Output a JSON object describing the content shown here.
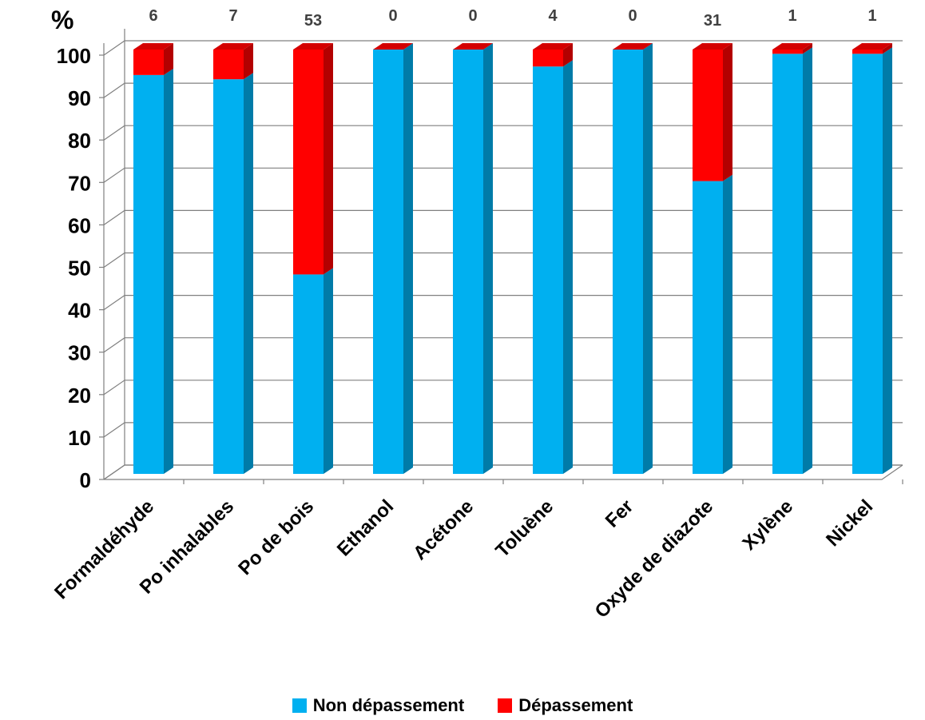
{
  "chart_data": {
    "type": "bar",
    "stacked": true,
    "style": "3d",
    "ylabel": "%",
    "ylim": [
      0,
      100
    ],
    "yticks": [
      0,
      10,
      20,
      30,
      40,
      50,
      60,
      70,
      80,
      90,
      100
    ],
    "grid": true,
    "legend_position": "bottom",
    "categories": [
      "Formaldéhyde",
      "Po inhalables",
      "Po de bois",
      "Ethanol",
      "Acétone",
      "Toluène",
      "Fer",
      "Oxyde de diazote",
      "Xylène",
      "Nickel"
    ],
    "series": [
      {
        "name": "Non dépassement",
        "color": "#00B0F0",
        "values": [
          94,
          93,
          47,
          100,
          100,
          96,
          100,
          69,
          99,
          99
        ]
      },
      {
        "name": "Dépassement",
        "color": "#FF0000",
        "values": [
          6,
          7,
          53,
          0,
          0,
          4,
          0,
          31,
          1,
          1
        ]
      }
    ],
    "top_labels": [
      "6",
      "7",
      "53",
      "0",
      "0",
      "4",
      "0",
      "31",
      "1",
      "1"
    ]
  }
}
